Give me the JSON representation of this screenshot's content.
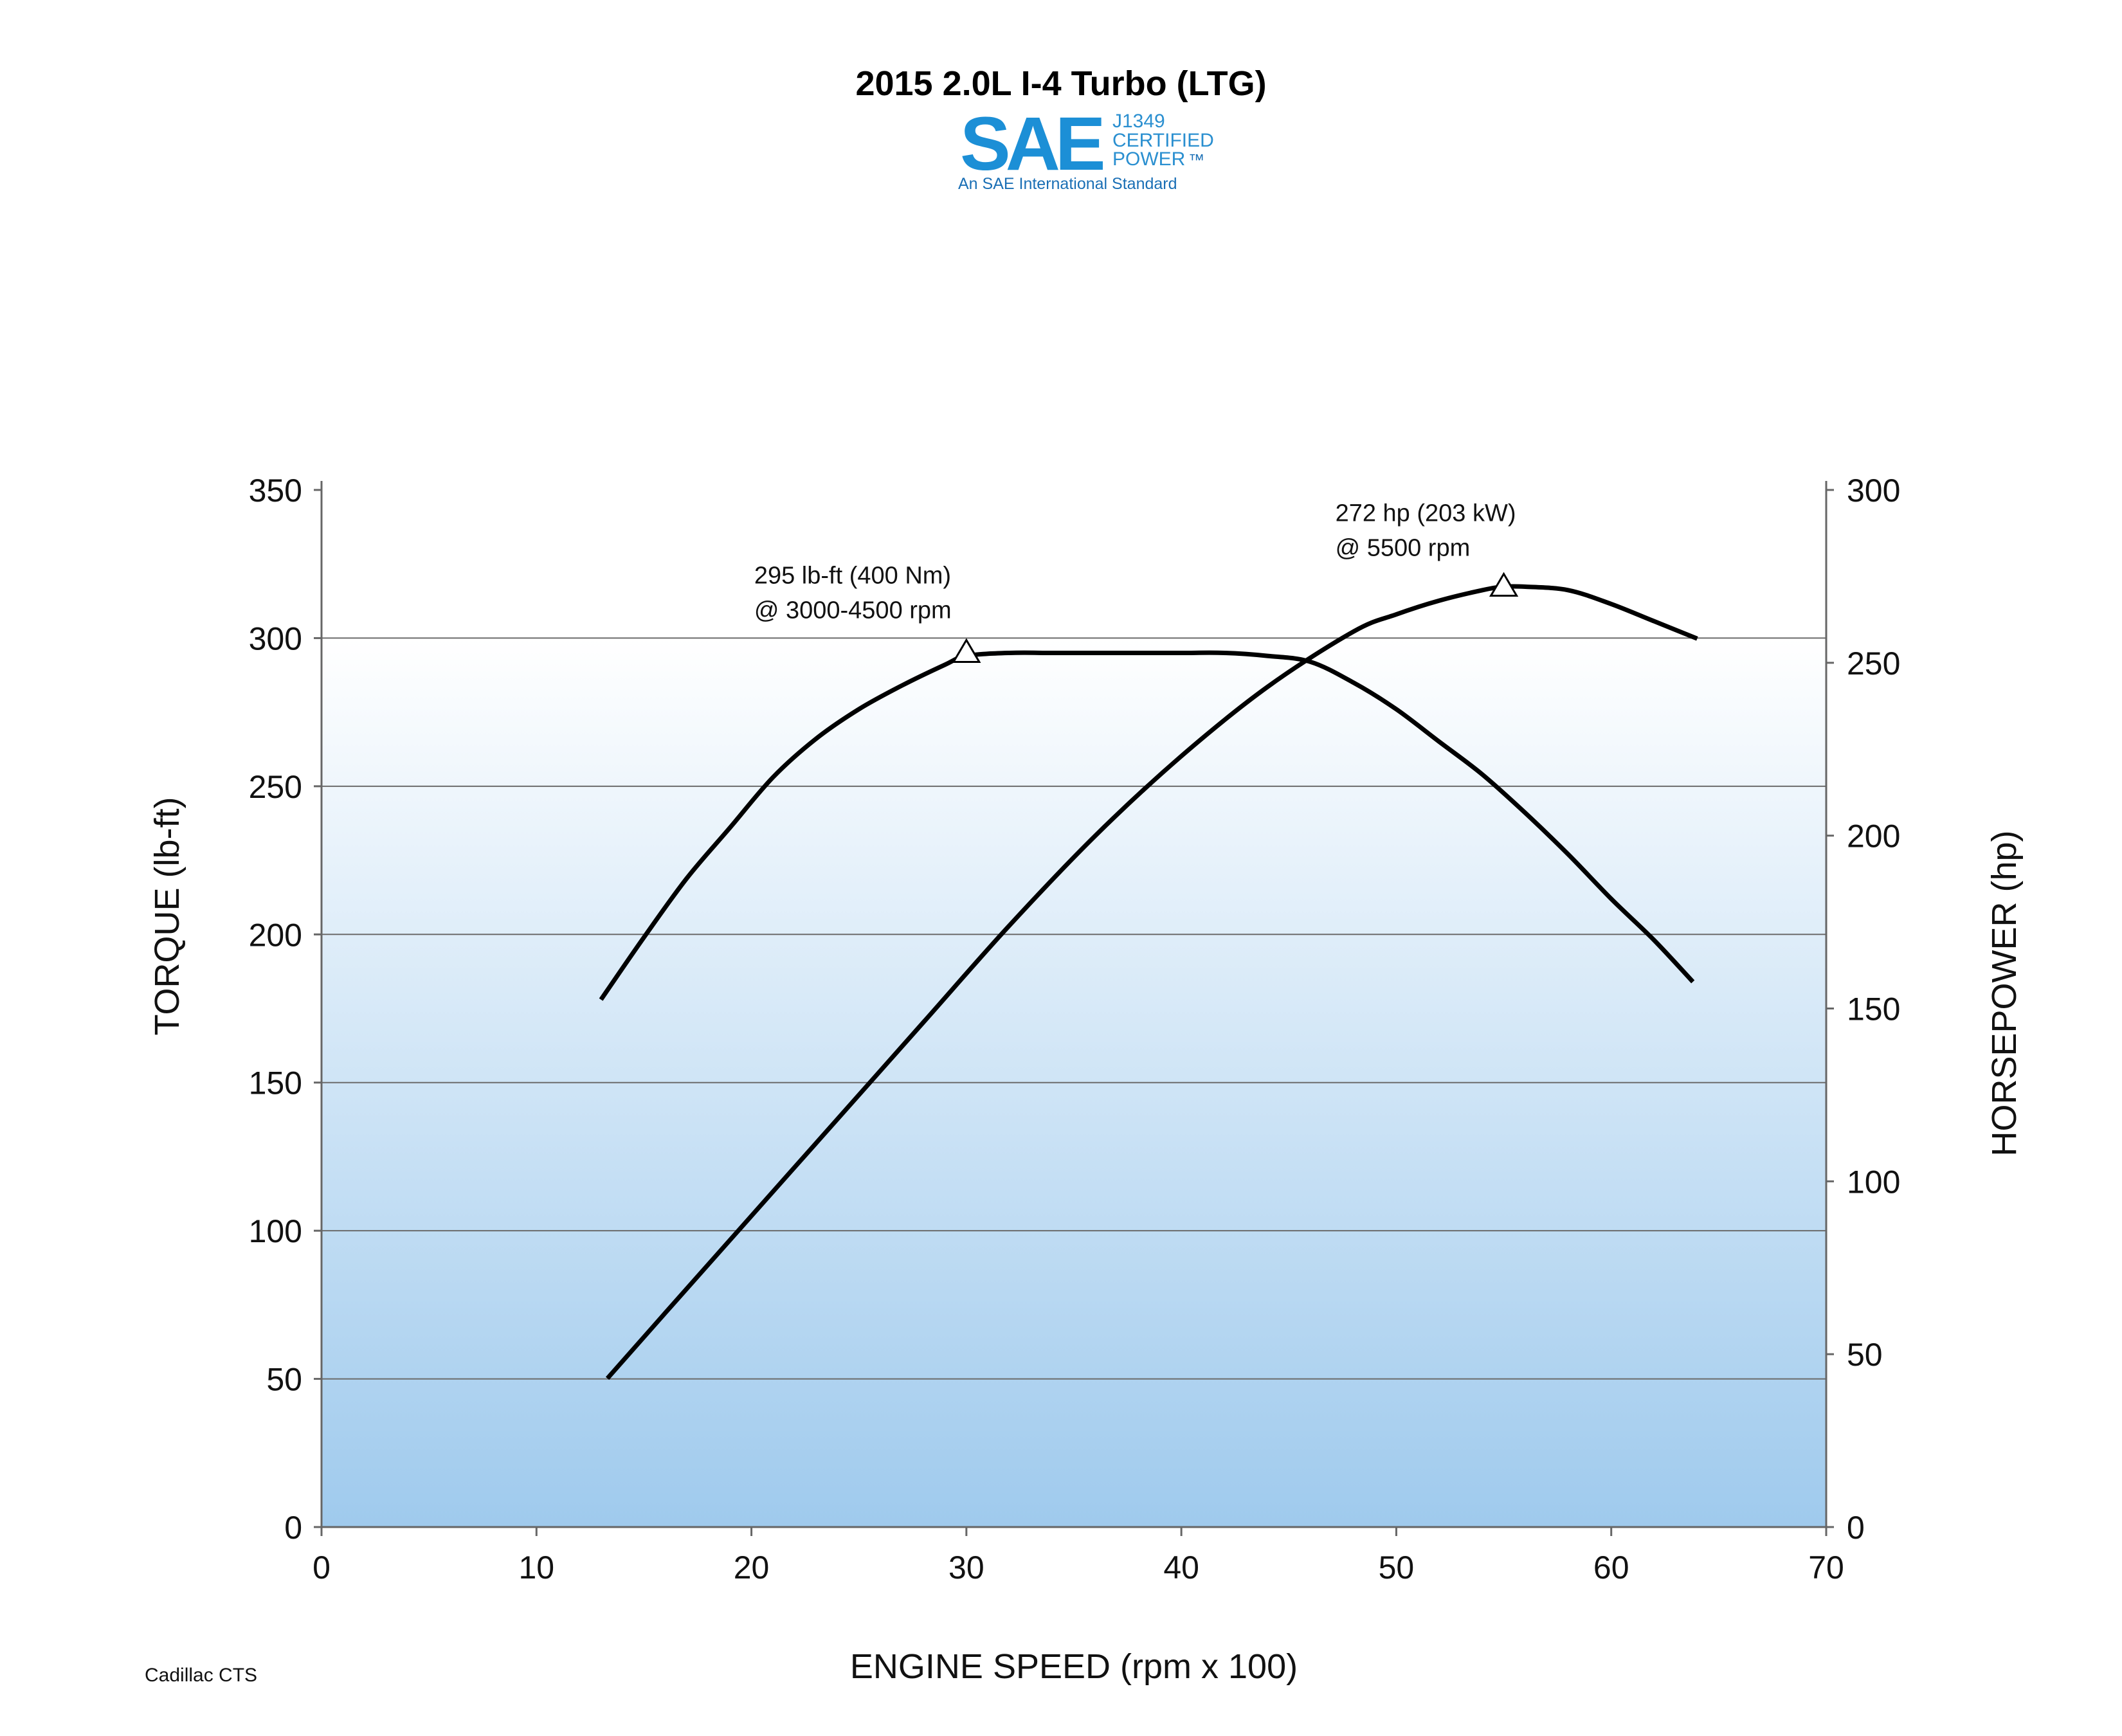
{
  "chart_data": {
    "type": "line",
    "title": "2015 2.0L I-4 Turbo (LTG)",
    "logo": {
      "mark": "SAE",
      "lines": [
        "J1349",
        "CERTIFIED",
        "POWER",
        "™"
      ],
      "tagline": "An SAE International Standard"
    },
    "xlabel": "ENGINE SPEED (rpm x 100)",
    "ylabel_left": "TORQUE (lb-ft)",
    "ylabel_right": "HORSEPOWER (hp)",
    "xlim": [
      0,
      70
    ],
    "ylim_left": [
      0,
      350
    ],
    "ylim_right": [
      0,
      300
    ],
    "x_ticks": [
      0,
      10,
      20,
      30,
      40,
      50,
      60,
      70
    ],
    "y_ticks_left": [
      0,
      50,
      100,
      150,
      200,
      250,
      300,
      350
    ],
    "y_ticks_right": [
      0,
      50,
      100,
      150,
      200,
      250,
      300
    ],
    "grid": true,
    "background_gradient": [
      "#ffffff",
      "#9fcaed"
    ],
    "series": [
      {
        "axis": "left",
        "color": "#000000",
        "x": [
          13,
          15,
          17,
          19,
          21,
          23,
          25,
          27,
          29,
          30,
          32,
          34,
          36,
          38,
          40,
          42,
          44,
          46,
          48,
          50,
          52,
          54,
          56,
          58,
          60,
          62,
          63.8
        ],
        "y": [
          178,
          199,
          219,
          236,
          253,
          266,
          276,
          284,
          291,
          294,
          295,
          295,
          295,
          295,
          295,
          295,
          294,
          292,
          285,
          276,
          265,
          254,
          241,
          227,
          212,
          198,
          184
        ]
      },
      {
        "axis": "right",
        "color": "#000000",
        "x": [
          13.3,
          16,
          20,
          24,
          28,
          32,
          36,
          40,
          44,
          48,
          50,
          52,
          54,
          55,
          56,
          58,
          60,
          62,
          64
        ],
        "y": [
          43,
          62,
          90,
          118,
          146,
          174,
          200,
          223,
          243,
          259,
          264,
          268,
          271,
          272,
          272,
          271,
          267,
          262,
          257
        ]
      }
    ],
    "annotations": [
      {
        "lines": [
          "295 lb-ft (400 Nm)",
          "@ 3000-4500 rpm"
        ],
        "x": 30,
        "y": 295,
        "axis": "left",
        "marker": "triangle"
      },
      {
        "lines": [
          "272 hp (203 kW)",
          "@ 5500 rpm"
        ],
        "x": 55,
        "y": 272,
        "axis": "right",
        "marker": "triangle"
      }
    ],
    "footnote": "Cadillac CTS"
  }
}
